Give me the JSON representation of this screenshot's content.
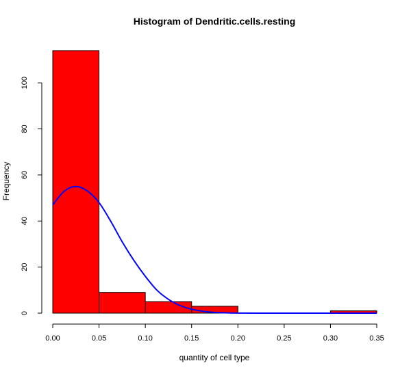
{
  "chart_data": {
    "type": "bar",
    "title": "Histogram of Dendritic.cells.resting",
    "xlabel": "quantity of cell type",
    "ylabel": "Frequency",
    "bins": [
      {
        "start": 0.0,
        "end": 0.05,
        "count": 114
      },
      {
        "start": 0.05,
        "end": 0.1,
        "count": 9
      },
      {
        "start": 0.1,
        "end": 0.15,
        "count": 5
      },
      {
        "start": 0.15,
        "end": 0.2,
        "count": 3
      },
      {
        "start": 0.2,
        "end": 0.25,
        "count": 0
      },
      {
        "start": 0.25,
        "end": 0.3,
        "count": 0
      },
      {
        "start": 0.3,
        "end": 0.35,
        "count": 1
      }
    ],
    "x_ticks": [
      0.0,
      0.05,
      0.1,
      0.15,
      0.2,
      0.25,
      0.3,
      0.35
    ],
    "x_tick_labels": [
      "0.00",
      "0.05",
      "0.10",
      "0.15",
      "0.20",
      "0.25",
      "0.30",
      "0.35"
    ],
    "y_ticks": [
      0,
      20,
      40,
      60,
      80,
      100
    ],
    "y_tick_labels": [
      "0",
      "20",
      "40",
      "60",
      "80",
      "100"
    ],
    "xlim": [
      0.0,
      0.35
    ],
    "ylim": [
      0,
      114
    ],
    "grid": false,
    "overlay_curve": {
      "type": "line",
      "x": [
        0.0,
        0.0125,
        0.025,
        0.0375,
        0.05,
        0.0625,
        0.075,
        0.0875,
        0.1,
        0.1125,
        0.125,
        0.1375,
        0.15,
        0.1625,
        0.175,
        0.2,
        0.25,
        0.3,
        0.35
      ],
      "y": [
        47,
        53,
        55,
        53,
        48,
        40,
        31,
        23,
        16,
        10,
        6,
        3.3,
        1.7,
        0.8,
        0.3,
        0.05,
        0,
        0,
        0
      ]
    },
    "colors": {
      "bar_fill": "#ff0000",
      "bar_stroke": "#000000",
      "curve": "#0000ff",
      "axis": "#000000"
    }
  }
}
